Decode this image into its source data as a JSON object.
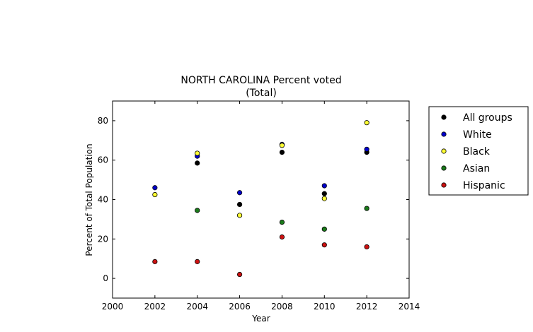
{
  "chart_data": {
    "type": "scatter",
    "title": "NORTH CAROLINA Percent voted",
    "subtitle": "(Total)",
    "xlabel": "Year",
    "ylabel": "Percent of Total Population",
    "xlim": [
      2000,
      2014
    ],
    "ylim": [
      -10,
      90
    ],
    "xticks": [
      2000,
      2002,
      2004,
      2006,
      2008,
      2010,
      2012,
      2014
    ],
    "yticks": [
      0,
      20,
      40,
      60,
      80
    ],
    "x": [
      2002,
      2004,
      2006,
      2008,
      2010,
      2012
    ],
    "legend_position": "right, outside plot",
    "series": [
      {
        "name": "All groups",
        "color": "#000000",
        "values": [
          null,
          58.5,
          37.5,
          64,
          43,
          64
        ]
      },
      {
        "name": "White",
        "color": "#0000cc",
        "values": [
          46,
          62,
          43.5,
          68,
          47,
          65.5
        ]
      },
      {
        "name": "Black",
        "color": "#ffff33",
        "values": [
          42.5,
          63.5,
          32,
          67.5,
          40.5,
          79
        ]
      },
      {
        "name": "Asian",
        "color": "#1a7a1a",
        "values": [
          null,
          34.5,
          null,
          28.5,
          25,
          35.5
        ]
      },
      {
        "name": "Hispanic",
        "color": "#cc1111",
        "values": [
          8.5,
          8.5,
          2,
          21,
          17,
          16
        ]
      }
    ]
  }
}
